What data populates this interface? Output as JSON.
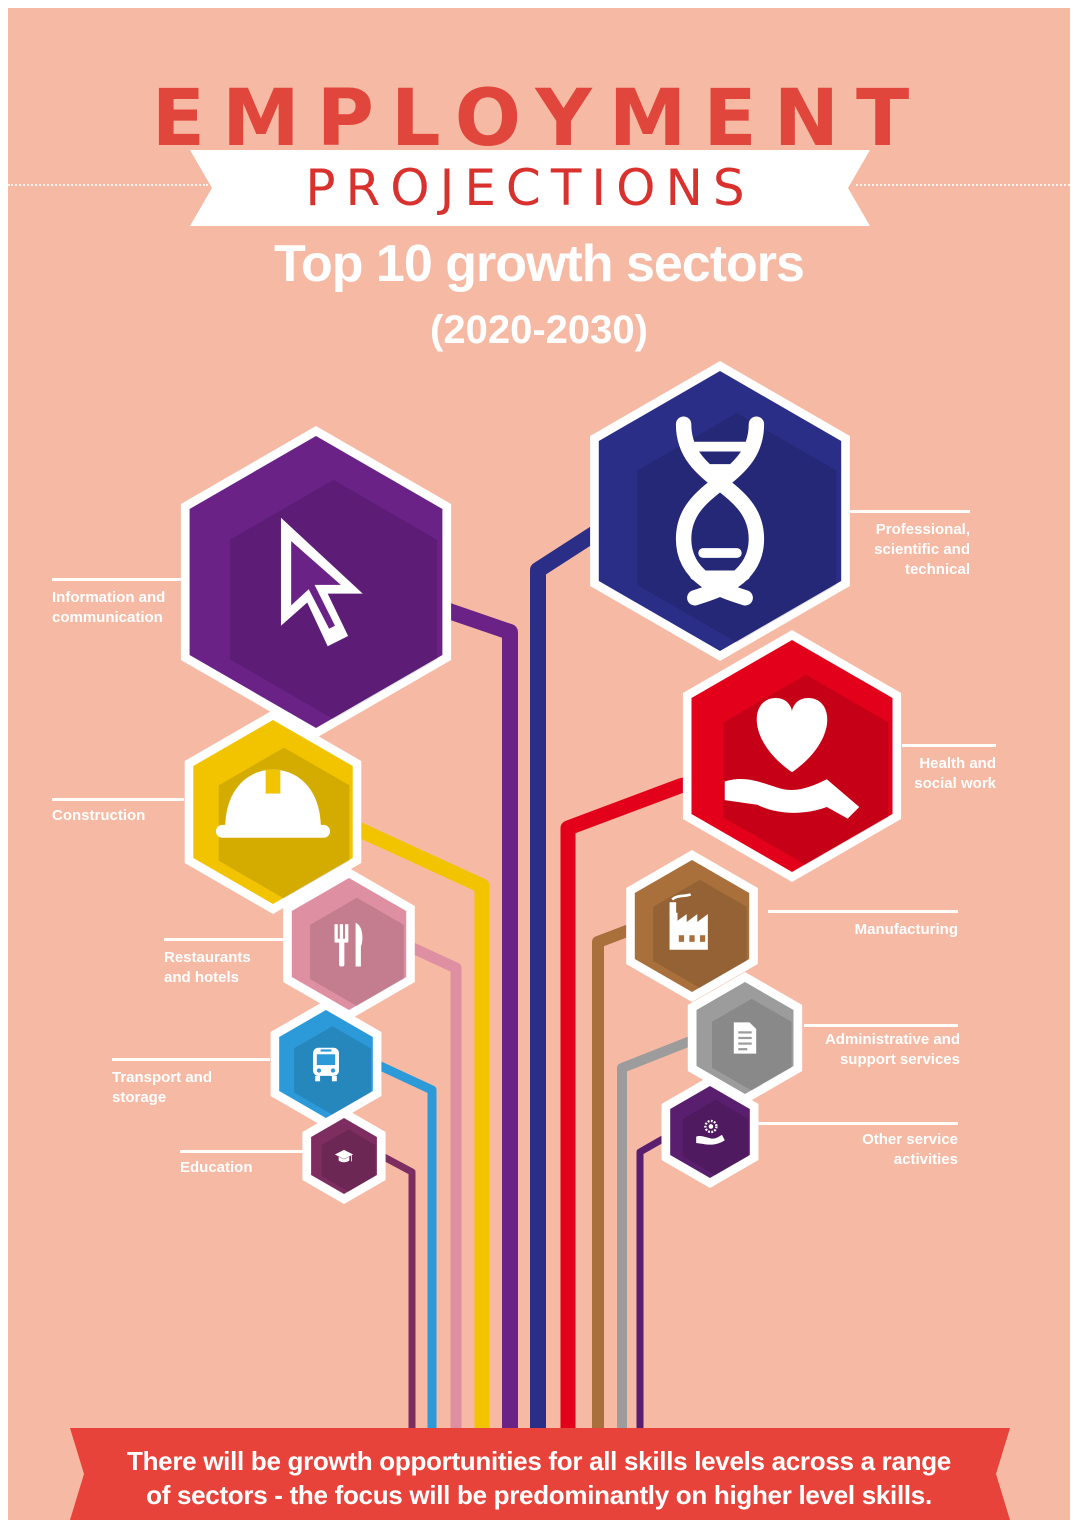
{
  "title": {
    "line1": "EMPLOYMENT",
    "line2": "PROJECTIONS",
    "subtitle": "Top 10 growth sectors",
    "years": "(2020-2030)"
  },
  "sectors": [
    {
      "id": "information",
      "label": "Information and\ncommunication",
      "color": "#6a2287",
      "icon": "cursor-icon"
    },
    {
      "id": "professional",
      "label": "Professional,\nscientific and\ntechnical",
      "color": "#2b2e87",
      "icon": "dna-icon"
    },
    {
      "id": "health",
      "label": "Health and\nsocial work",
      "color": "#e2001a",
      "icon": "heart-in-hand-icon"
    },
    {
      "id": "construction",
      "label": "Construction",
      "color": "#f2c400",
      "icon": "hard-hat-icon"
    },
    {
      "id": "manufacturing",
      "label": "Manufacturing",
      "color": "#a9703c",
      "icon": "factory-icon"
    },
    {
      "id": "restaurants",
      "label": "Restaurants\nand hotels",
      "color": "#de8fa2",
      "icon": "fork-knife-icon"
    },
    {
      "id": "administrative",
      "label": "Administrative and\nsupport services",
      "color": "#9c9c9c",
      "icon": "document-icon"
    },
    {
      "id": "transport",
      "label": "Transport and\nstorage",
      "color": "#2c9ad8",
      "icon": "bus-icon"
    },
    {
      "id": "other",
      "label": "Other service\nactivities",
      "color": "#5a1e6e",
      "icon": "gear-in-hand-icon"
    },
    {
      "id": "education",
      "label": "Education",
      "color": "#7d2d60",
      "icon": "graduation-cap-icon"
    }
  ],
  "colors": {
    "background": "#f6b9a3",
    "title_red": "#e0463b",
    "banner_red": "#e8433a"
  },
  "footer": {
    "line1": "There will be growth opportunities for all skills levels across a range",
    "line2": "of sectors - the focus will be predominantly on higher level skills."
  }
}
